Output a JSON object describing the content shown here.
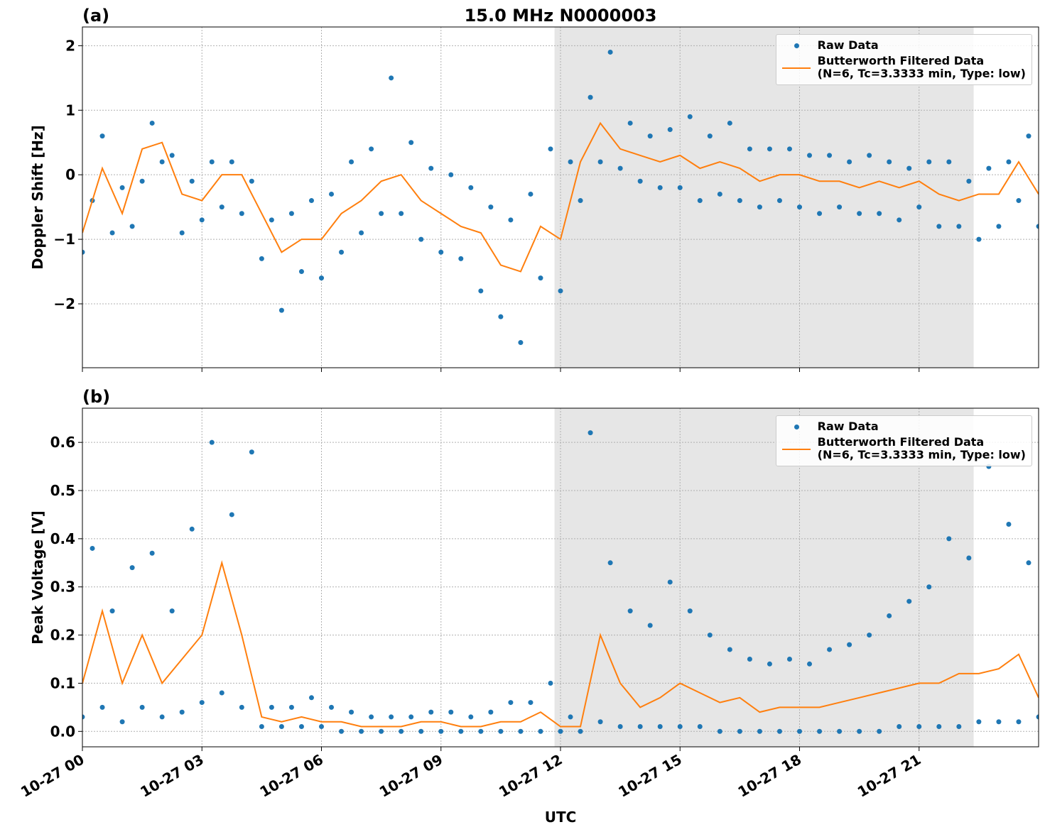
{
  "chart_data": [
    {
      "type": "scatter-line",
      "panel_label": "(a)",
      "title": "15.0 MHz N0000003",
      "ylabel": "Doppler Shift [Hz]",
      "xlim": [
        0,
        24
      ],
      "xticks": [
        0,
        3,
        6,
        9,
        12,
        15,
        18,
        21
      ],
      "ylim": [
        -2.99,
        2.29
      ],
      "yticks": [
        {
          "value": -2,
          "label": "−2"
        },
        {
          "value": -1,
          "label": "−1"
        },
        0,
        1,
        2
      ],
      "grid": true,
      "legend": "upper right",
      "shaded_span": [
        11.85,
        22.37
      ],
      "shade_color": "#e6e6e6",
      "series": [
        {
          "name": "Raw Data",
          "kind": "scatter",
          "color": "#1f77b4",
          "x": [
            0,
            0.25,
            0.5,
            0.75,
            1,
            1.25,
            1.5,
            1.75,
            2,
            2.25,
            2.5,
            2.75,
            3,
            3.25,
            3.5,
            3.75,
            4,
            4.25,
            4.5,
            4.75,
            5,
            5.25,
            5.5,
            5.75,
            6,
            6.25,
            6.5,
            6.75,
            7,
            7.25,
            7.5,
            7.75,
            8,
            8.25,
            8.5,
            8.75,
            9,
            9.25,
            9.5,
            9.75,
            10,
            10.25,
            10.5,
            10.75,
            11,
            11.25,
            11.5,
            11.75,
            12,
            12.25,
            12.5,
            12.75,
            13,
            13.25,
            13.5,
            13.75,
            14,
            14.25,
            14.5,
            14.75,
            15,
            15.25,
            15.5,
            15.75,
            16,
            16.25,
            16.5,
            16.75,
            17,
            17.25,
            17.5,
            17.75,
            18,
            18.25,
            18.5,
            18.75,
            19,
            19.25,
            19.5,
            19.75,
            20,
            20.25,
            20.5,
            20.75,
            21,
            21.25,
            21.5,
            21.75,
            22,
            22.25,
            22.5,
            22.75,
            23,
            23.25,
            23.5,
            23.75,
            24
          ],
          "values": [
            -1.2,
            -0.4,
            0.6,
            -0.9,
            -0.2,
            -0.8,
            -0.1,
            0.8,
            0.2,
            0.3,
            -0.9,
            -0.1,
            -0.7,
            0.2,
            -0.5,
            0.2,
            -0.6,
            -0.1,
            -1.3,
            -0.7,
            -2.1,
            -0.6,
            -1.5,
            -0.4,
            -1.6,
            -0.3,
            -1.2,
            0.2,
            -0.9,
            0.4,
            -0.6,
            1.5,
            -0.6,
            0.5,
            -1.0,
            0.1,
            -1.2,
            0.0,
            -1.3,
            -0.2,
            -1.8,
            -0.5,
            -2.2,
            -0.7,
            -2.6,
            -0.3,
            -1.6,
            0.4,
            -1.8,
            0.2,
            -0.4,
            1.2,
            0.2,
            1.9,
            0.1,
            0.8,
            -0.1,
            0.6,
            -0.2,
            0.7,
            -0.2,
            0.9,
            -0.4,
            0.6,
            -0.3,
            0.8,
            -0.4,
            0.4,
            -0.5,
            0.4,
            -0.4,
            0.4,
            -0.5,
            0.3,
            -0.6,
            0.3,
            -0.5,
            0.2,
            -0.6,
            0.3,
            -0.6,
            0.2,
            -0.7,
            0.1,
            -0.5,
            0.2,
            -0.8,
            0.2,
            -0.8,
            -0.1,
            -1.0,
            0.1,
            -0.8,
            0.2,
            -0.4,
            0.6,
            -0.8
          ]
        },
        {
          "name": "Butterworth Filtered Data\n(N=6, Tc=3.3333 min, Type: low)",
          "kind": "line",
          "color": "#ff7f0e",
          "x": [
            0,
            0.5,
            1,
            1.5,
            2,
            2.5,
            3,
            3.5,
            4,
            4.5,
            5,
            5.5,
            6,
            6.5,
            7,
            7.5,
            8,
            8.5,
            9,
            9.5,
            10,
            10.5,
            11,
            11.5,
            12,
            12.5,
            13,
            13.5,
            14,
            14.5,
            15,
            15.5,
            16,
            16.5,
            17,
            17.5,
            18,
            18.5,
            19,
            19.5,
            20,
            20.5,
            21,
            21.5,
            22,
            22.5,
            23,
            23.5,
            24
          ],
          "values": [
            -0.9,
            0.1,
            -0.6,
            0.4,
            0.5,
            -0.3,
            -0.4,
            0.0,
            0.0,
            -0.6,
            -1.2,
            -1.0,
            -1.0,
            -0.6,
            -0.4,
            -0.1,
            0.0,
            -0.4,
            -0.6,
            -0.8,
            -0.9,
            -1.4,
            -1.5,
            -0.8,
            -1.0,
            0.2,
            0.8,
            0.4,
            0.3,
            0.2,
            0.3,
            0.1,
            0.2,
            0.1,
            -0.1,
            0.0,
            0.0,
            -0.1,
            -0.1,
            -0.2,
            -0.1,
            -0.2,
            -0.1,
            -0.3,
            -0.4,
            -0.3,
            -0.3,
            0.2,
            -0.3
          ]
        }
      ]
    },
    {
      "type": "scatter-line",
      "panel_label": "(b)",
      "ylabel": "Peak Voltage [V]",
      "xlabel": "UTC",
      "xlim": [
        0,
        24
      ],
      "xticks": [
        {
          "value": 0,
          "label": "10-27 00"
        },
        {
          "value": 3,
          "label": "10-27 03"
        },
        {
          "value": 6,
          "label": "10-27 06"
        },
        {
          "value": 9,
          "label": "10-27 09"
        },
        {
          "value": 12,
          "label": "10-27 12"
        },
        {
          "value": 15,
          "label": "10-27 15"
        },
        {
          "value": 18,
          "label": "10-27 18"
        },
        {
          "value": 21,
          "label": "10-27 21"
        }
      ],
      "ylim": [
        -0.032,
        0.671
      ],
      "yticks": [
        {
          "value": 0,
          "label": "0.0"
        },
        0.1,
        0.2,
        0.3,
        0.4,
        0.5,
        0.6
      ],
      "grid": true,
      "legend": "upper right",
      "shaded_span": [
        11.85,
        22.37
      ],
      "shade_color": "#e6e6e6",
      "series": [
        {
          "name": "Raw Data",
          "kind": "scatter",
          "color": "#1f77b4",
          "x": [
            0,
            0.25,
            0.5,
            0.75,
            1,
            1.25,
            1.5,
            1.75,
            2,
            2.25,
            2.5,
            2.75,
            3,
            3.25,
            3.5,
            3.75,
            4,
            4.25,
            4.5,
            4.75,
            5,
            5.25,
            5.5,
            5.75,
            6,
            6.25,
            6.5,
            6.75,
            7,
            7.25,
            7.5,
            7.75,
            8,
            8.25,
            8.5,
            8.75,
            9,
            9.25,
            9.5,
            9.75,
            10,
            10.25,
            10.5,
            10.75,
            11,
            11.25,
            11.5,
            11.75,
            12,
            12.25,
            12.5,
            12.75,
            13,
            13.25,
            13.5,
            13.75,
            14,
            14.25,
            14.5,
            14.75,
            15,
            15.25,
            15.5,
            15.75,
            16,
            16.25,
            16.5,
            16.75,
            17,
            17.25,
            17.5,
            17.75,
            18,
            18.25,
            18.5,
            18.75,
            19,
            19.25,
            19.5,
            19.75,
            20,
            20.25,
            20.5,
            20.75,
            21,
            21.25,
            21.5,
            21.75,
            22,
            22.25,
            22.5,
            22.75,
            23,
            23.25,
            23.5,
            23.75,
            24
          ],
          "values": [
            0.03,
            0.38,
            0.05,
            0.25,
            0.02,
            0.34,
            0.05,
            0.37,
            0.03,
            0.25,
            0.04,
            0.42,
            0.06,
            0.6,
            0.08,
            0.45,
            0.05,
            0.58,
            0.01,
            0.05,
            0.01,
            0.05,
            0.01,
            0.07,
            0.01,
            0.05,
            0.0,
            0.04,
            0.0,
            0.03,
            0.0,
            0.03,
            0.0,
            0.03,
            0.0,
            0.04,
            0.0,
            0.04,
            0.0,
            0.03,
            0.0,
            0.04,
            0.0,
            0.06,
            0.0,
            0.06,
            0.0,
            0.1,
            0.0,
            0.03,
            0.0,
            0.62,
            0.02,
            0.35,
            0.01,
            0.25,
            0.01,
            0.22,
            0.01,
            0.31,
            0.01,
            0.25,
            0.01,
            0.2,
            0.0,
            0.17,
            0.0,
            0.15,
            0.0,
            0.14,
            0.0,
            0.15,
            0.0,
            0.14,
            0.0,
            0.17,
            0.0,
            0.18,
            0.0,
            0.2,
            0.0,
            0.24,
            0.01,
            0.27,
            0.01,
            0.3,
            0.01,
            0.4,
            0.01,
            0.36,
            0.02,
            0.55,
            0.02,
            0.43,
            0.02,
            0.35,
            0.03
          ]
        },
        {
          "name": "Butterworth Filtered Data\n(N=6, Tc=3.3333 min, Type: low)",
          "kind": "line",
          "color": "#ff7f0e",
          "x": [
            0,
            0.5,
            1,
            1.5,
            2,
            2.5,
            3,
            3.5,
            4,
            4.5,
            5,
            5.5,
            6,
            6.5,
            7,
            7.5,
            8,
            8.5,
            9,
            9.5,
            10,
            10.5,
            11,
            11.5,
            12,
            12.5,
            13,
            13.5,
            14,
            14.5,
            15,
            15.5,
            16,
            16.5,
            17,
            17.5,
            18,
            18.5,
            19,
            19.5,
            20,
            20.5,
            21,
            21.5,
            22,
            22.5,
            23,
            23.5,
            24
          ],
          "values": [
            0.1,
            0.25,
            0.1,
            0.2,
            0.1,
            0.15,
            0.2,
            0.35,
            0.2,
            0.03,
            0.02,
            0.03,
            0.02,
            0.02,
            0.01,
            0.01,
            0.01,
            0.02,
            0.02,
            0.01,
            0.01,
            0.02,
            0.02,
            0.04,
            0.01,
            0.01,
            0.2,
            0.1,
            0.05,
            0.07,
            0.1,
            0.08,
            0.06,
            0.07,
            0.04,
            0.05,
            0.05,
            0.05,
            0.06,
            0.07,
            0.08,
            0.09,
            0.1,
            0.1,
            0.12,
            0.12,
            0.13,
            0.16,
            0.07
          ]
        }
      ]
    }
  ]
}
